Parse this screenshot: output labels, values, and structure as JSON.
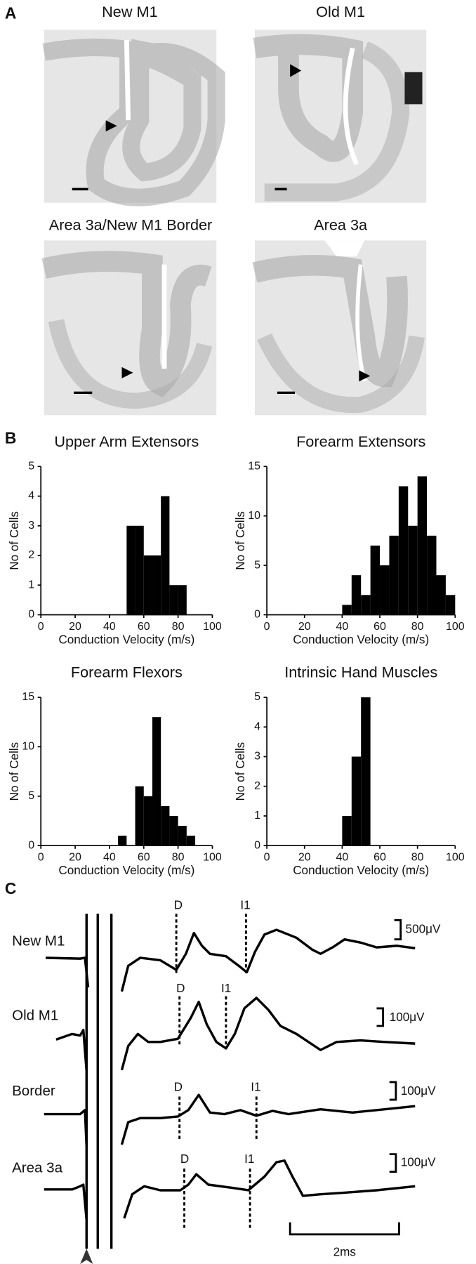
{
  "panel_a": {
    "label": "A",
    "images": [
      {
        "title": "New M1"
      },
      {
        "title": "Old M1"
      },
      {
        "title": "Area 3a/New M1 Border"
      },
      {
        "title": "Area 3a"
      }
    ]
  },
  "panel_b": {
    "label": "B"
  },
  "chart_data": [
    {
      "type": "histogram",
      "title": "Upper Arm Extensors",
      "x_label": "Conduction Velocity (m/s)",
      "y_label": "No of Cells",
      "bins": [
        50,
        55,
        60,
        65,
        70,
        75,
        80,
        85
      ],
      "values": [
        3,
        3,
        2,
        2,
        4,
        1,
        1
      ],
      "color": "#000000",
      "xlim": [
        0,
        100
      ],
      "xticks": [
        0,
        20,
        40,
        60,
        80,
        100
      ],
      "ylim": [
        0,
        5
      ],
      "yticks": [
        0,
        1,
        2,
        3,
        4,
        5
      ]
    },
    {
      "type": "histogram",
      "title": "Forearm Extensors",
      "x_label": "Conduction Velocity (m/s)",
      "y_label": "No of Cells",
      "bins": [
        40,
        45,
        50,
        55,
        60,
        65,
        70,
        75,
        80,
        85,
        90,
        95,
        100
      ],
      "values": [
        1,
        4,
        2,
        7,
        5,
        8,
        13,
        9,
        14,
        8,
        4,
        2
      ],
      "color": "#000000",
      "xlim": [
        0,
        100
      ],
      "xticks": [
        0,
        20,
        40,
        60,
        80,
        100
      ],
      "ylim": [
        0,
        15
      ],
      "yticks": [
        0,
        5,
        10,
        15
      ]
    },
    {
      "type": "histogram",
      "title": "Forearm Flexors",
      "x_label": "Conduction Velocity (m/s)",
      "y_label": "No of Cells",
      "bins": [
        45,
        50,
        55,
        60,
        65,
        70,
        75,
        80,
        85,
        90
      ],
      "values": [
        1,
        0,
        6,
        5,
        13,
        4,
        3,
        2,
        1
      ],
      "color": "#000000",
      "xlim": [
        0,
        100
      ],
      "xticks": [
        0,
        20,
        40,
        60,
        80,
        100
      ],
      "ylim": [
        0,
        15
      ],
      "yticks": [
        0,
        5,
        10,
        15
      ]
    },
    {
      "type": "histogram",
      "title": "Intrinsic Hand Muscles",
      "x_label": "Conduction Velocity (m/s)",
      "y_label": "No of Cells",
      "bins": [
        40,
        45,
        50,
        55
      ],
      "values": [
        1,
        3,
        5
      ],
      "color": "#000000",
      "xlim": [
        0,
        100
      ],
      "xticks": [
        0,
        20,
        40,
        60,
        80,
        100
      ],
      "ylim": [
        0,
        5
      ],
      "yticks": [
        0,
        1,
        2,
        3,
        4,
        5
      ]
    }
  ],
  "panel_c": {
    "label": "C",
    "time_scale": "2ms",
    "rows": [
      {
        "label": "New M1",
        "scale": "500μV",
        "d": "D",
        "i1": "I1"
      },
      {
        "label": "Old M1",
        "scale": "100μV",
        "d": "D",
        "i1": "I1"
      },
      {
        "label": "Border",
        "scale": "100μV",
        "d": "D",
        "i1": "I1"
      },
      {
        "label": "Area 3a",
        "scale": "100μV",
        "d": "D",
        "i1": "I1"
      }
    ]
  }
}
